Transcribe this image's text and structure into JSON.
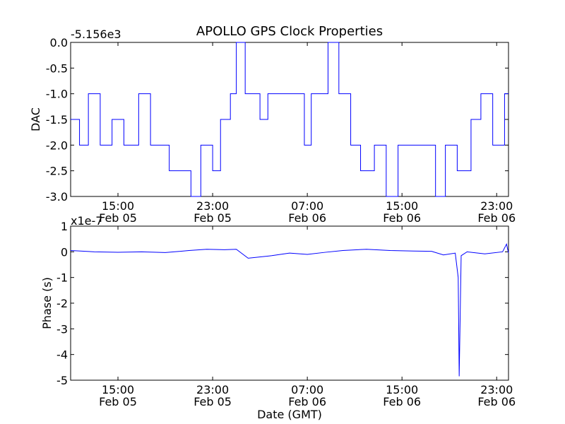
{
  "figure": {
    "title": "APOLLO GPS Clock Properties",
    "xlabel": "Date (GMT)",
    "line_color": "#0000ff"
  },
  "chart_data": [
    {
      "type": "line",
      "name": "dac",
      "title": "APOLLO GPS Clock Properties",
      "ylabel": "DAC",
      "offset_text": "-5.156e3",
      "xlim": [
        "2014-02-05 11:00",
        "2014-02-07 00:00"
      ],
      "ylim": [
        -3.0,
        0.0
      ],
      "yticks": [
        0.0,
        -0.5,
        -1.0,
        -1.5,
        -2.0,
        -2.5,
        -3.0
      ],
      "ytick_labels": [
        "0.0",
        "-0.5",
        "-1.0",
        "-1.5",
        "-2.0",
        "-2.5",
        "-3.0"
      ],
      "xticks": [
        {
          "x": "2014-02-05 15:00",
          "time": "15:00",
          "date": "Feb 05"
        },
        {
          "x": "2014-02-05 23:00",
          "time": "23:00",
          "date": "Feb 05"
        },
        {
          "x": "2014-02-06 07:00",
          "time": "07:00",
          "date": "Feb 06"
        },
        {
          "x": "2014-02-06 15:00",
          "time": "15:00",
          "date": "Feb 06"
        },
        {
          "x": "2014-02-06 23:00",
          "time": "23:00",
          "date": "Feb 06"
        }
      ],
      "grid": false,
      "step_x": [
        "2014-02-05 11:00",
        "2014-02-05 11:45",
        "2014-02-05 12:30",
        "2014-02-05 13:30",
        "2014-02-05 14:30",
        "2014-02-05 15:30",
        "2014-02-05 16:45",
        "2014-02-05 17:45",
        "2014-02-05 18:30",
        "2014-02-05 19:20",
        "2014-02-05 21:10",
        "2014-02-05 22:00",
        "2014-02-05 23:00",
        "2014-02-05 23:40",
        "2014-02-06 00:30",
        "2014-02-06 01:00",
        "2014-02-06 01:45",
        "2014-02-06 03:00",
        "2014-02-06 03:40",
        "2014-02-06 04:50",
        "2014-02-06 06:45",
        "2014-02-06 07:20",
        "2014-02-06 08:45",
        "2014-02-06 09:40",
        "2014-02-06 10:40",
        "2014-02-06 11:30",
        "2014-02-06 12:40",
        "2014-02-06 13:40",
        "2014-02-06 14:40",
        "2014-02-06 16:30",
        "2014-02-06 17:50",
        "2014-02-06 18:40",
        "2014-02-06 19:40",
        "2014-02-06 20:50",
        "2014-02-06 21:40",
        "2014-02-06 22:40",
        "2014-02-06 23:40"
      ],
      "step_y": [
        -1.5,
        -2.0,
        -1.0,
        -2.0,
        -1.5,
        -2.0,
        -1.0,
        -2.0,
        -2.0,
        -2.5,
        -3.0,
        -2.0,
        -2.5,
        -1.5,
        -1.0,
        0.0,
        -1.0,
        -1.5,
        -1.0,
        -1.0,
        -2.0,
        -1.0,
        0.0,
        -1.0,
        -2.0,
        -2.5,
        -2.0,
        -3.0,
        -2.0,
        -2.0,
        -3.0,
        -2.0,
        -2.5,
        -1.5,
        -1.0,
        -2.0,
        -1.0
      ],
      "ylabel_short": "DAC"
    },
    {
      "type": "line",
      "name": "phase",
      "ylabel": "Phase (s)",
      "offset_text": "x1e-7",
      "xlabel": "Date (GMT)",
      "xlim": [
        "2014-02-05 11:00",
        "2014-02-07 00:00"
      ],
      "ylim": [
        -5,
        1
      ],
      "yticks": [
        1,
        0,
        -1,
        -2,
        -3,
        -4,
        -5
      ],
      "ytick_labels": [
        "1",
        "0",
        "-1",
        "-2",
        "-3",
        "-4",
        "-5"
      ],
      "xticks": [
        {
          "x": "2014-02-05 15:00",
          "time": "15:00",
          "date": "Feb 05"
        },
        {
          "x": "2014-02-05 23:00",
          "time": "23:00",
          "date": "Feb 05"
        },
        {
          "x": "2014-02-06 07:00",
          "time": "07:00",
          "date": "Feb 06"
        },
        {
          "x": "2014-02-06 15:00",
          "time": "15:00",
          "date": "Feb 06"
        },
        {
          "x": "2014-02-06 23:00",
          "time": "23:00",
          "date": "Feb 06"
        }
      ],
      "grid": false,
      "x": [
        "2014-02-05 11:00",
        "2014-02-05 13:00",
        "2014-02-05 15:00",
        "2014-02-05 17:00",
        "2014-02-05 19:00",
        "2014-02-05 21:00",
        "2014-02-05 22:30",
        "2014-02-06 00:00",
        "2014-02-06 01:00",
        "2014-02-06 02:00",
        "2014-02-06 04:00",
        "2014-02-06 05:30",
        "2014-02-06 07:00",
        "2014-02-06 08:30",
        "2014-02-06 10:00",
        "2014-02-06 12:00",
        "2014-02-06 14:00",
        "2014-02-06 16:00",
        "2014-02-06 17:30",
        "2014-02-06 18:30",
        "2014-02-06 19:30",
        "2014-02-06 19:45",
        "2014-02-06 19:50",
        "2014-02-06 20:00",
        "2014-02-06 20:30",
        "2014-02-06 22:00",
        "2014-02-06 23:30",
        "2014-02-06 23:50",
        "2014-02-07 00:00"
      ],
      "y": [
        0.05,
        0.0,
        -0.02,
        0.0,
        -0.03,
        0.05,
        0.1,
        0.08,
        0.1,
        -0.25,
        -0.15,
        -0.05,
        -0.1,
        -0.02,
        0.05,
        0.1,
        0.05,
        0.03,
        0.02,
        -0.12,
        -0.05,
        -1.0,
        -4.85,
        -0.15,
        0.0,
        -0.08,
        0.0,
        0.3,
        -0.05
      ]
    }
  ]
}
